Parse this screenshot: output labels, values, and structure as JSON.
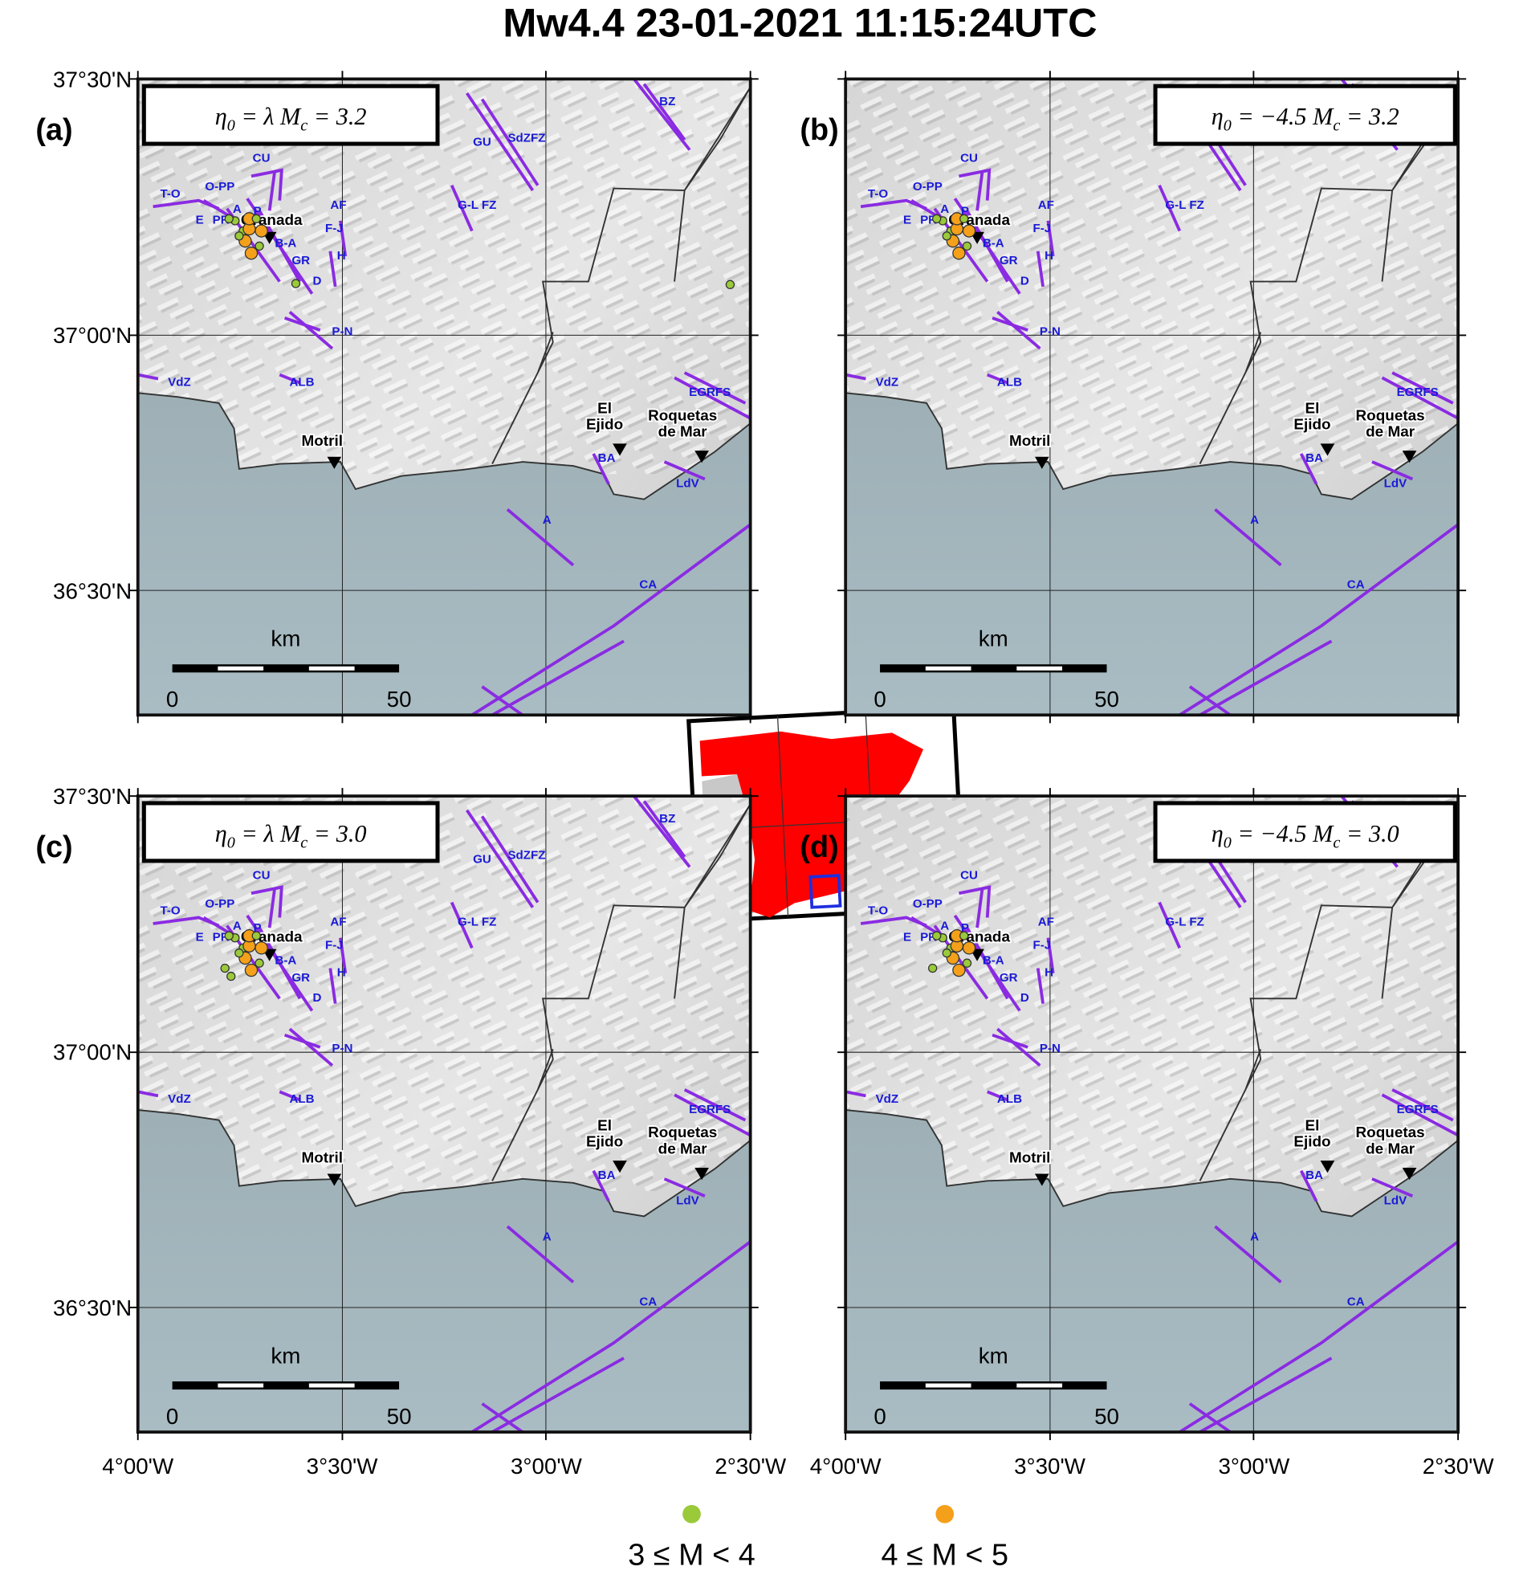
{
  "title": "Mw4.4 23-01-2021 11:15:24UTC",
  "panels": [
    {
      "label": "(a)",
      "box": [
        "η",
        "0",
        " = λ M",
        "c",
        " = 3.2"
      ]
    },
    {
      "label": "(b)",
      "box": [
        "η",
        "0",
        " = −4.5 M",
        "c",
        " = 3.2"
      ]
    },
    {
      "label": "(c)",
      "box": [
        "η",
        "0",
        " = λ M",
        "c",
        " = 3.0"
      ]
    },
    {
      "label": "(d)",
      "box": [
        "η",
        "0",
        " = −4.5 M",
        "c",
        " = 3.0"
      ]
    }
  ],
  "faults": [
    "T-O",
    "O-PP",
    "CU",
    "AF",
    "E",
    "PR",
    "A",
    "P",
    "F-J",
    "B-A",
    "GR",
    "H",
    "D",
    "P-N",
    "ALB",
    "VdZ",
    "GU",
    "SdZFZ",
    "BZ",
    "G-L FZ",
    "EGRFS",
    "BA",
    "LdV",
    "A",
    "CA"
  ],
  "towns": [
    {
      "lines": [
        "Granada"
      ]
    },
    {
      "lines": [
        "Motril"
      ]
    },
    {
      "lines": [
        "El",
        "Ejido"
      ]
    },
    {
      "lines": [
        "Roquetas",
        "de Mar"
      ]
    }
  ],
  "scale_bar": {
    "unit": "km",
    "start": "0",
    "end": "50"
  },
  "lat_ticks": [
    "37°30'N",
    "37°00'N",
    "36°30'N"
  ],
  "lon_ticks": [
    "4°00'W",
    "3°30'W",
    "3°00'W",
    "2°30'W"
  ],
  "legend": [
    {
      "label": "3 ≤ M < 4",
      "color": "#9ac93a"
    },
    {
      "label": "4 ≤ M < 5",
      "color": "#f5a01a"
    }
  ]
}
